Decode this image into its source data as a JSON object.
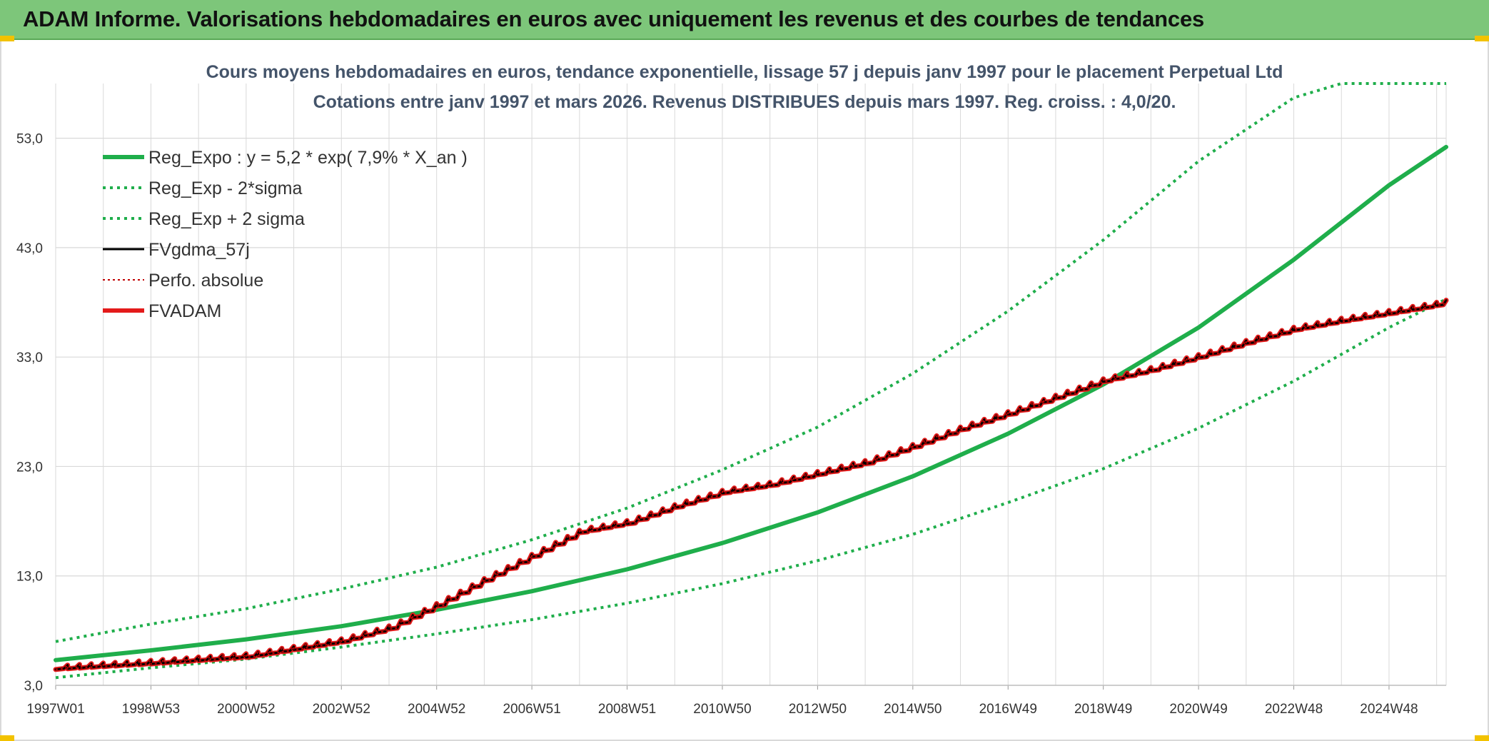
{
  "header": {
    "title": "ADAM Informe. Valorisations hebdomadaires en euros avec uniquement les revenus et des courbes de tendances"
  },
  "colors": {
    "banner": "#7dc67a",
    "trend": "#1fae4b",
    "adam": "#e31a1a",
    "gdma": "#000000",
    "perfo": "#c00000",
    "grid": "#d9d9d9"
  },
  "chart_data": {
    "type": "line",
    "title": "Cours moyens hebdomadaires en euros, tendance exponentielle, lissage 57 j depuis janv 1997 pour le placement Perpetual Ltd",
    "subtitle": "Cotations entre janv 1997 et mars 2026. Revenus DISTRIBUES depuis mars 1997. Reg. croiss. : 4,0/20.",
    "xlabel": "",
    "ylabel": "",
    "ylim": [
      3,
      58
    ],
    "yticks": [
      3,
      13,
      23,
      33,
      43,
      53
    ],
    "ytick_labels": [
      "3,0",
      "13,0",
      "23,0",
      "33,0",
      "43,0",
      "53,0"
    ],
    "xlim": [
      1997.0,
      2026.2
    ],
    "xtick_labels": [
      "1997W01",
      "1998W53",
      "2000W52",
      "2002W52",
      "2004W52",
      "2006W51",
      "2008W51",
      "2010W50",
      "2012W50",
      "2014W50",
      "2016W49",
      "2018W49",
      "2020W49",
      "2022W48",
      "2024W48"
    ],
    "grid": true,
    "legend_position": "top-left",
    "series": [
      {
        "name": "Reg_Expo : y = 5,2 * exp( 7,9% *  X_an )",
        "style": "solid-thick",
        "color": "#1fae4b",
        "x": [
          1997,
          1999,
          2001,
          2003,
          2005,
          2007,
          2009,
          2011,
          2013,
          2015,
          2017,
          2019,
          2021,
          2023,
          2025,
          2026.2
        ],
        "y": [
          5.3,
          6.2,
          7.2,
          8.4,
          9.9,
          11.6,
          13.6,
          16.0,
          18.8,
          22.1,
          26.0,
          30.5,
          35.7,
          41.9,
          48.7,
          52.2
        ]
      },
      {
        "name": "Reg_Exp - 2*sigma",
        "style": "dotted",
        "color": "#1fae4b",
        "x": [
          1997,
          1999,
          2001,
          2003,
          2005,
          2007,
          2009,
          2011,
          2013,
          2015,
          2017,
          2019,
          2021,
          2023,
          2025,
          2026.2
        ],
        "y": [
          3.7,
          4.6,
          5.4,
          6.5,
          7.7,
          9.0,
          10.5,
          12.3,
          14.4,
          16.8,
          19.7,
          22.8,
          26.5,
          30.8,
          35.7,
          38.3
        ]
      },
      {
        "name": "Reg_Exp + 2 sigma",
        "style": "dotted",
        "color": "#1fae4b",
        "x": [
          1997,
          1999,
          2001,
          2003,
          2005,
          2007,
          2009,
          2011,
          2013,
          2015,
          2017,
          2019,
          2021,
          2023,
          2024.0,
          2026.2
        ],
        "y": [
          7.0,
          8.6,
          10.0,
          11.8,
          13.8,
          16.3,
          19.2,
          22.7,
          26.6,
          31.5,
          37.2,
          43.7,
          50.9,
          56.7,
          58.0,
          58.0
        ]
      },
      {
        "name": "FVgdma_57j",
        "style": "solid-thin",
        "color": "#000000",
        "x": [
          1997,
          1999,
          2001,
          2003,
          2004,
          2005,
          2006,
          2007,
          2008,
          2009,
          2010,
          2011,
          2012,
          2013,
          2014,
          2015,
          2016,
          2017,
          2018,
          2019,
          2020,
          2021,
          2022,
          2023,
          2024,
          2025,
          2026.2
        ],
        "y": [
          4.7,
          5.2,
          5.8,
          7.2,
          8.4,
          10.5,
          12.8,
          15.0,
          17.2,
          18.0,
          19.5,
          20.8,
          21.5,
          22.5,
          23.5,
          25.0,
          26.6,
          28.0,
          29.5,
          31.0,
          32.0,
          33.2,
          34.5,
          35.7,
          36.5,
          37.2,
          38.1
        ]
      },
      {
        "name": "Perfo. absolue",
        "style": "dotted-thin",
        "color": "#c00000",
        "x": [
          1997,
          1999,
          2001,
          2003,
          2004,
          2005,
          2006,
          2007,
          2008,
          2009,
          2010,
          2011,
          2012,
          2013,
          2014,
          2015,
          2016,
          2017,
          2018,
          2019,
          2020,
          2021,
          2022,
          2023,
          2024,
          2025,
          2026.2
        ],
        "y": [
          4.7,
          5.2,
          5.8,
          7.2,
          8.4,
          10.5,
          12.8,
          15.0,
          17.2,
          18.0,
          19.5,
          20.8,
          21.5,
          22.5,
          23.5,
          25.0,
          26.6,
          28.0,
          29.5,
          31.0,
          32.0,
          33.2,
          34.5,
          35.7,
          36.5,
          37.2,
          38.1
        ]
      },
      {
        "name": "FVADAM",
        "style": "solid-thick",
        "color": "#e31a1a",
        "x": [
          1997,
          1999,
          2001,
          2003,
          2004,
          2005,
          2006,
          2007,
          2008,
          2009,
          2010,
          2011,
          2012,
          2013,
          2014,
          2015,
          2016,
          2017,
          2018,
          2019,
          2020,
          2021,
          2022,
          2023,
          2024,
          2025,
          2026.2
        ],
        "y": [
          4.7,
          5.2,
          5.8,
          7.2,
          8.4,
          10.5,
          12.8,
          15.0,
          17.2,
          18.0,
          19.5,
          20.8,
          21.5,
          22.5,
          23.5,
          25.0,
          26.6,
          28.0,
          29.5,
          31.0,
          32.0,
          33.2,
          34.5,
          35.7,
          36.5,
          37.2,
          38.1
        ]
      }
    ]
  }
}
